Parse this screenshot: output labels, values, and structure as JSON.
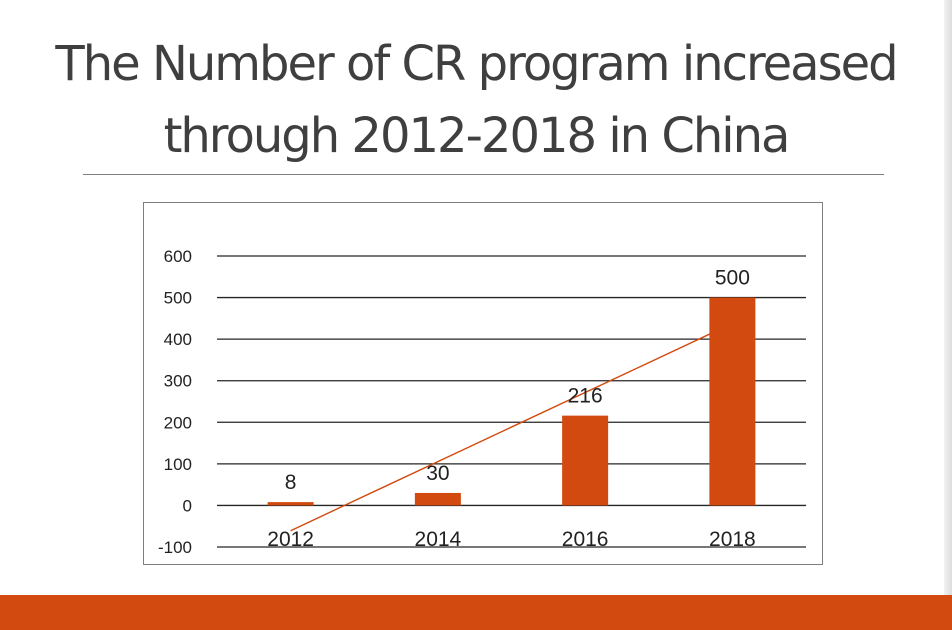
{
  "slide": {
    "title": "The Number of CR program increased through 2012-2018 in China",
    "accent_color": "#D24A0F"
  },
  "chart_data": {
    "type": "bar",
    "categories": [
      "2012",
      "2014",
      "2016",
      "2018"
    ],
    "values": [
      8,
      30,
      216,
      500
    ],
    "data_labels": [
      "8",
      "30",
      "216",
      "500"
    ],
    "ylim": [
      -100,
      600
    ],
    "yticks": [
      -100,
      0,
      100,
      200,
      300,
      400,
      500,
      600
    ],
    "grid": true,
    "bar_color": "#D24A0F",
    "trendline": {
      "type": "linear",
      "color": "#D24A0F"
    }
  }
}
